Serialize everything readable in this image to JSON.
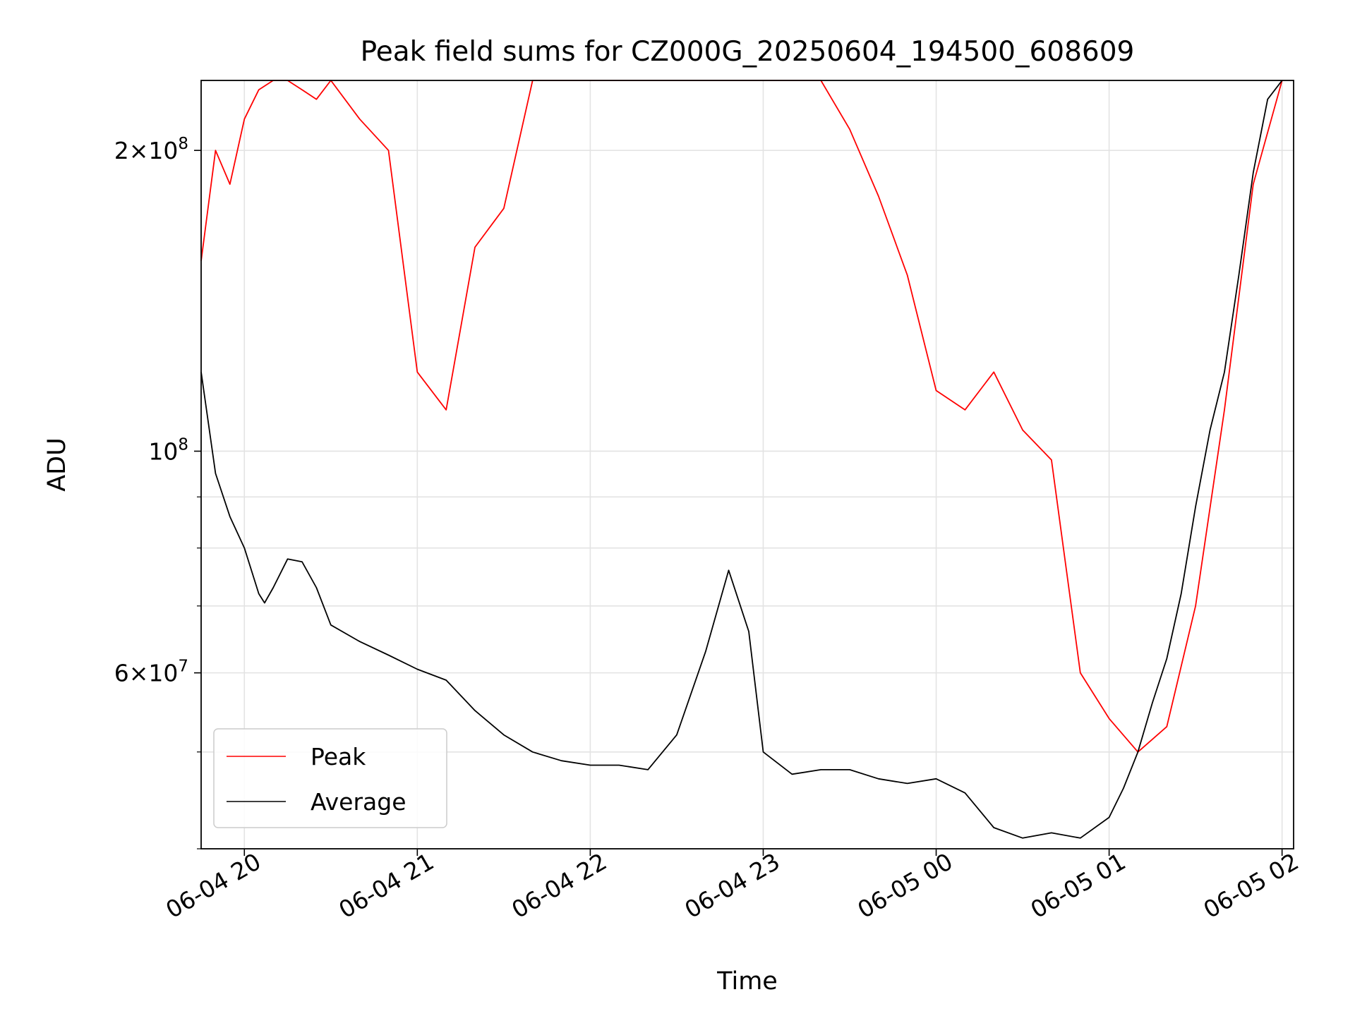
{
  "chart_data": {
    "type": "line",
    "title": "Peak field sums for CZ000G_20250604_194500_608609",
    "xlabel": "Time",
    "ylabel": "ADU",
    "y_scale": "log",
    "ylim": [
      40000000,
      235000000
    ],
    "xlim": [
      "2025-06-04 19:45",
      "2025-06-05 02:04"
    ],
    "x_ticks": [
      {
        "value": "2025-06-04 20:00",
        "label": "06-04 20"
      },
      {
        "value": "2025-06-04 21:00",
        "label": "06-04 21"
      },
      {
        "value": "2025-06-04 22:00",
        "label": "06-04 22"
      },
      {
        "value": "2025-06-04 23:00",
        "label": "06-04 23"
      },
      {
        "value": "2025-06-05 00:00",
        "label": "06-05 00"
      },
      {
        "value": "2025-06-05 01:00",
        "label": "06-05 01"
      },
      {
        "value": "2025-06-05 02:00",
        "label": "06-05 02"
      }
    ],
    "y_ticks": [
      {
        "value": 200000000,
        "base": "2×10",
        "exp": "8"
      },
      {
        "value": 100000000,
        "base": "10",
        "exp": "8"
      },
      {
        "value": 60000000,
        "base": "6×10",
        "exp": "7"
      }
    ],
    "grid": true,
    "legend_position": "lower-left",
    "series": [
      {
        "name": "Peak",
        "color": "#ff0000",
        "x": [
          "2025-06-04 19:45",
          "2025-06-04 19:50",
          "2025-06-04 19:55",
          "2025-06-04 20:00",
          "2025-06-04 20:05",
          "2025-06-04 20:10",
          "2025-06-04 20:15",
          "2025-06-04 20:20",
          "2025-06-04 20:25",
          "2025-06-04 20:30",
          "2025-06-04 20:40",
          "2025-06-04 20:50",
          "2025-06-04 21:00",
          "2025-06-04 21:10",
          "2025-06-04 21:20",
          "2025-06-04 21:30",
          "2025-06-04 21:40",
          "2025-06-04 21:50",
          "2025-06-04 22:00",
          "2025-06-04 22:10",
          "2025-06-04 22:20",
          "2025-06-04 22:30",
          "2025-06-04 22:40",
          "2025-06-04 22:50",
          "2025-06-04 23:00",
          "2025-06-04 23:10",
          "2025-06-04 23:20",
          "2025-06-04 23:30",
          "2025-06-04 23:40",
          "2025-06-04 23:50",
          "2025-06-05 00:00",
          "2025-06-05 00:10",
          "2025-06-05 00:20",
          "2025-06-05 00:30",
          "2025-06-05 00:40",
          "2025-06-05 00:50",
          "2025-06-05 01:00",
          "2025-06-05 01:10",
          "2025-06-05 01:20",
          "2025-06-05 01:30",
          "2025-06-05 01:40",
          "2025-06-05 01:50",
          "2025-06-05 02:00"
        ],
        "y": [
          155000000,
          200000000,
          185000000,
          215000000,
          230000000,
          235000000,
          235000000,
          230000000,
          225000000,
          235000000,
          215000000,
          200000000,
          120000000,
          110000000,
          160000000,
          175000000,
          235000000,
          235000000,
          235000000,
          235000000,
          235000000,
          235000000,
          235000000,
          235000000,
          235000000,
          235000000,
          235000000,
          210000000,
          180000000,
          150000000,
          115000000,
          110000000,
          120000000,
          105000000,
          98000000,
          60000000,
          54000000,
          50000000,
          53000000,
          70000000,
          110000000,
          185000000,
          235000000
        ]
      },
      {
        "name": "Average",
        "color": "#000000",
        "x": [
          "2025-06-04 19:45",
          "2025-06-04 19:50",
          "2025-06-04 19:55",
          "2025-06-04 20:00",
          "2025-06-04 20:05",
          "2025-06-04 20:07",
          "2025-06-04 20:10",
          "2025-06-04 20:15",
          "2025-06-04 20:20",
          "2025-06-04 20:25",
          "2025-06-04 20:30",
          "2025-06-04 20:40",
          "2025-06-04 20:50",
          "2025-06-04 21:00",
          "2025-06-04 21:10",
          "2025-06-04 21:20",
          "2025-06-04 21:30",
          "2025-06-04 21:40",
          "2025-06-04 21:50",
          "2025-06-04 22:00",
          "2025-06-04 22:10",
          "2025-06-04 22:20",
          "2025-06-04 22:30",
          "2025-06-04 22:40",
          "2025-06-04 22:48",
          "2025-06-04 22:55",
          "2025-06-04 23:00",
          "2025-06-04 23:10",
          "2025-06-04 23:20",
          "2025-06-04 23:30",
          "2025-06-04 23:40",
          "2025-06-04 23:50",
          "2025-06-05 00:00",
          "2025-06-05 00:10",
          "2025-06-05 00:20",
          "2025-06-05 00:30",
          "2025-06-05 00:40",
          "2025-06-05 00:50",
          "2025-06-05 01:00",
          "2025-06-05 01:05",
          "2025-06-05 01:10",
          "2025-06-05 01:15",
          "2025-06-05 01:20",
          "2025-06-05 01:25",
          "2025-06-05 01:30",
          "2025-06-05 01:35",
          "2025-06-05 01:40",
          "2025-06-05 01:45",
          "2025-06-05 01:50",
          "2025-06-05 01:55",
          "2025-06-05 02:00"
        ],
        "y": [
          120000000,
          95000000,
          86000000,
          80000000,
          72000000,
          70500000,
          73000000,
          78000000,
          77500000,
          73000000,
          67000000,
          64500000,
          62500000,
          60500000,
          59000000,
          55000000,
          52000000,
          50000000,
          49000000,
          48500000,
          48500000,
          48000000,
          52000000,
          63000000,
          76000000,
          66000000,
          50000000,
          47500000,
          48000000,
          48000000,
          47000000,
          46500000,
          47000000,
          45500000,
          42000000,
          41000000,
          41500000,
          41000000,
          43000000,
          46000000,
          50000000,
          56000000,
          62000000,
          72000000,
          88000000,
          105000000,
          120000000,
          150000000,
          190000000,
          225000000,
          235000000
        ]
      }
    ]
  }
}
